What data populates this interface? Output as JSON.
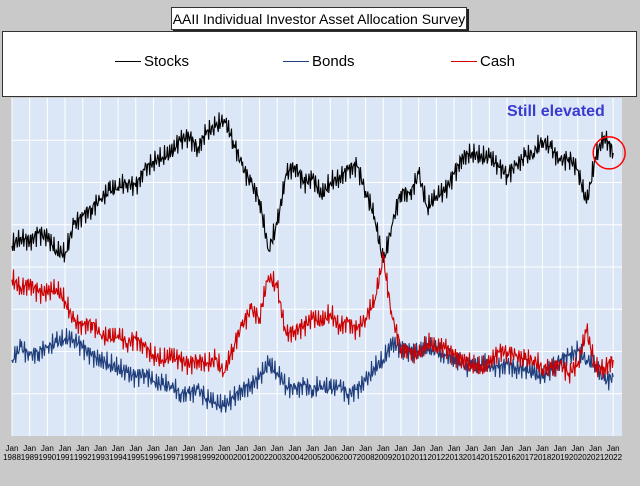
{
  "chart_data": {
    "type": "line",
    "title": "AAII Individual Investor Asset Allocation Survey",
    "x_labels": [
      {
        "top": "Jan",
        "bottom": "1988"
      },
      {
        "top": "Jan",
        "bottom": "1989"
      },
      {
        "top": "Jan",
        "bottom": "1990"
      },
      {
        "top": "Jan",
        "bottom": "1991"
      },
      {
        "top": "Jan",
        "bottom": "1992"
      },
      {
        "top": "Jan",
        "bottom": "1993"
      },
      {
        "top": "Jan",
        "bottom": "1994"
      },
      {
        "top": "Jan",
        "bottom": "1995"
      },
      {
        "top": "Jan",
        "bottom": "1996"
      },
      {
        "top": "Jan",
        "bottom": "1997"
      },
      {
        "top": "Jan",
        "bottom": "1998"
      },
      {
        "top": "Jan",
        "bottom": "1999"
      },
      {
        "top": "Jan",
        "bottom": "2000"
      },
      {
        "top": "Jan",
        "bottom": "2001"
      },
      {
        "top": "Jan",
        "bottom": "2002"
      },
      {
        "top": "Jan",
        "bottom": "2003"
      },
      {
        "top": "Jan",
        "bottom": "2004"
      },
      {
        "top": "Jan",
        "bottom": "2005"
      },
      {
        "top": "Jan",
        "bottom": "2006"
      },
      {
        "top": "Jan",
        "bottom": "2007"
      },
      {
        "top": "Jan",
        "bottom": "2008"
      },
      {
        "top": "Jan",
        "bottom": "2009"
      },
      {
        "top": "Jan",
        "bottom": "2010"
      },
      {
        "top": "Jan",
        "bottom": "2011"
      },
      {
        "top": "Jan",
        "bottom": "2012"
      },
      {
        "top": "Jan",
        "bottom": "2013"
      },
      {
        "top": "Jan",
        "bottom": "2014"
      },
      {
        "top": "Jan",
        "bottom": "2015"
      },
      {
        "top": "Jan",
        "bottom": "2016"
      },
      {
        "top": "Jan",
        "bottom": "2017"
      },
      {
        "top": "Jan",
        "bottom": "2018"
      },
      {
        "top": "Jan",
        "bottom": "2019"
      },
      {
        "top": "Jan",
        "bottom": "2020"
      },
      {
        "top": "Jan",
        "bottom": "2021"
      },
      {
        "top": "Jan",
        "bottom": "2022"
      }
    ],
    "xlim": [
      1988,
      2022.5
    ],
    "ylim": [
      0,
      80
    ],
    "yticks": [
      10,
      20,
      30,
      40,
      50,
      60,
      70
    ],
    "grid": true,
    "legend_position": "top",
    "annotation": "Still elevated",
    "series": [
      {
        "name": "Stocks",
        "color": "#000000",
        "values": [
          [
            1988,
            45
          ],
          [
            1988.5,
            47
          ],
          [
            1989,
            46
          ],
          [
            1989.5,
            48
          ],
          [
            1990,
            47
          ],
          [
            1990.5,
            44
          ],
          [
            1991,
            43
          ],
          [
            1991.5,
            50
          ],
          [
            1992,
            52
          ],
          [
            1992.5,
            54
          ],
          [
            1993,
            56
          ],
          [
            1993.5,
            58
          ],
          [
            1994,
            59
          ],
          [
            1994.5,
            60
          ],
          [
            1995,
            59
          ],
          [
            1995.5,
            63
          ],
          [
            1996,
            65
          ],
          [
            1996.5,
            66
          ],
          [
            1997,
            67
          ],
          [
            1997.5,
            70
          ],
          [
            1998,
            71
          ],
          [
            1998.5,
            68
          ],
          [
            1999,
            72
          ],
          [
            1999.5,
            73
          ],
          [
            2000,
            75
          ],
          [
            2000.5,
            70
          ],
          [
            2001,
            64
          ],
          [
            2001.5,
            60
          ],
          [
            2002,
            56
          ],
          [
            2002.5,
            44
          ],
          [
            2003,
            50
          ],
          [
            2003.5,
            62
          ],
          [
            2004,
            64
          ],
          [
            2004.5,
            60
          ],
          [
            2005,
            61
          ],
          [
            2005.5,
            57
          ],
          [
            2006,
            60
          ],
          [
            2006.5,
            61
          ],
          [
            2007,
            63
          ],
          [
            2007.5,
            64
          ],
          [
            2008,
            58
          ],
          [
            2008.5,
            52
          ],
          [
            2009,
            41
          ],
          [
            2009.5,
            50
          ],
          [
            2010,
            58
          ],
          [
            2010.5,
            57
          ],
          [
            2011,
            62
          ],
          [
            2011.5,
            54
          ],
          [
            2012,
            57
          ],
          [
            2012.5,
            58
          ],
          [
            2013,
            62
          ],
          [
            2013.5,
            66
          ],
          [
            2014,
            67
          ],
          [
            2014.5,
            66
          ],
          [
            2015,
            66
          ],
          [
            2015.5,
            64
          ],
          [
            2016,
            62
          ],
          [
            2016.5,
            64
          ],
          [
            2017,
            66
          ],
          [
            2017.5,
            67
          ],
          [
            2018,
            70
          ],
          [
            2018.5,
            68
          ],
          [
            2019,
            65
          ],
          [
            2019.5,
            66
          ],
          [
            2020,
            63
          ],
          [
            2020.5,
            55
          ],
          [
            2021,
            66
          ],
          [
            2021.5,
            71
          ],
          [
            2022,
            67
          ]
        ]
      },
      {
        "name": "Bonds",
        "color": "#1f3d7a",
        "values": [
          [
            1988,
            18
          ],
          [
            1988.5,
            21
          ],
          [
            1989,
            19
          ],
          [
            1989.5,
            20
          ],
          [
            1990,
            21
          ],
          [
            1990.5,
            22
          ],
          [
            1991,
            23
          ],
          [
            1991.5,
            23
          ],
          [
            1992,
            21
          ],
          [
            1992.5,
            19
          ],
          [
            1993,
            18
          ],
          [
            1993.5,
            17
          ],
          [
            1994,
            16
          ],
          [
            1994.5,
            15
          ],
          [
            1995,
            14
          ],
          [
            1995.5,
            15
          ],
          [
            1996,
            13
          ],
          [
            1996.5,
            12
          ],
          [
            1997,
            12
          ],
          [
            1997.5,
            10
          ],
          [
            1998,
            10
          ],
          [
            1998.5,
            11
          ],
          [
            1999,
            9
          ],
          [
            1999.5,
            8
          ],
          [
            2000,
            7
          ],
          [
            2000.5,
            9
          ],
          [
            2001,
            11
          ],
          [
            2001.5,
            12
          ],
          [
            2002,
            14
          ],
          [
            2002.5,
            17
          ],
          [
            2003,
            15
          ],
          [
            2003.5,
            12
          ],
          [
            2004,
            11
          ],
          [
            2004.5,
            12
          ],
          [
            2005,
            11
          ],
          [
            2005.5,
            12
          ],
          [
            2006,
            11
          ],
          [
            2006.5,
            12
          ],
          [
            2007,
            10
          ],
          [
            2007.5,
            11
          ],
          [
            2008,
            13
          ],
          [
            2008.5,
            16
          ],
          [
            2009,
            18
          ],
          [
            2009.5,
            22
          ],
          [
            2010,
            21
          ],
          [
            2010.5,
            20
          ],
          [
            2011,
            20
          ],
          [
            2011.5,
            21
          ],
          [
            2012,
            20
          ],
          [
            2012.5,
            19
          ],
          [
            2013,
            19
          ],
          [
            2013.5,
            17
          ],
          [
            2014,
            16
          ],
          [
            2014.5,
            17
          ],
          [
            2015,
            17
          ],
          [
            2015.5,
            16
          ],
          [
            2016,
            17
          ],
          [
            2016.5,
            16
          ],
          [
            2017,
            16
          ],
          [
            2017.5,
            15
          ],
          [
            2018,
            14
          ],
          [
            2018.5,
            16
          ],
          [
            2019,
            18
          ],
          [
            2019.5,
            19
          ],
          [
            2020,
            20
          ],
          [
            2020.5,
            18
          ],
          [
            2021,
            17
          ],
          [
            2021.5,
            13
          ],
          [
            2022,
            14
          ]
        ]
      },
      {
        "name": "Cash",
        "color": "#cc0000",
        "values": [
          [
            1988,
            37
          ],
          [
            1988.5,
            35
          ],
          [
            1989,
            36
          ],
          [
            1989.5,
            34
          ],
          [
            1990,
            34
          ],
          [
            1990.5,
            35
          ],
          [
            1991,
            32
          ],
          [
            1991.5,
            27
          ],
          [
            1992,
            26
          ],
          [
            1992.5,
            27
          ],
          [
            1993,
            24
          ],
          [
            1993.5,
            23
          ],
          [
            1994,
            24
          ],
          [
            1994.5,
            22
          ],
          [
            1995,
            23
          ],
          [
            1995.5,
            21
          ],
          [
            1996,
            19
          ],
          [
            1996.5,
            18
          ],
          [
            1997,
            19
          ],
          [
            1997.5,
            18
          ],
          [
            1998,
            17
          ],
          [
            1998.5,
            18
          ],
          [
            1999,
            17
          ],
          [
            1999.5,
            18
          ],
          [
            2000,
            15
          ],
          [
            2000.5,
            21
          ],
          [
            2001,
            26
          ],
          [
            2001.5,
            30
          ],
          [
            2002,
            28
          ],
          [
            2002.5,
            38
          ],
          [
            2003,
            35
          ],
          [
            2003.5,
            24
          ],
          [
            2004,
            25
          ],
          [
            2004.5,
            26
          ],
          [
            2005,
            28
          ],
          [
            2005.5,
            27
          ],
          [
            2006,
            29
          ],
          [
            2006.5,
            26
          ],
          [
            2007,
            27
          ],
          [
            2007.5,
            25
          ],
          [
            2008,
            28
          ],
          [
            2008.5,
            32
          ],
          [
            2009,
            42
          ],
          [
            2009.5,
            28
          ],
          [
            2010,
            21
          ],
          [
            2010.5,
            20
          ],
          [
            2011,
            19
          ],
          [
            2011.5,
            22
          ],
          [
            2012,
            21
          ],
          [
            2012.5,
            21
          ],
          [
            2013,
            19
          ],
          [
            2013.5,
            18
          ],
          [
            2014,
            17
          ],
          [
            2014.5,
            16
          ],
          [
            2015,
            17
          ],
          [
            2015.5,
            20
          ],
          [
            2016,
            20
          ],
          [
            2016.5,
            19
          ],
          [
            2017,
            18
          ],
          [
            2017.5,
            18
          ],
          [
            2018,
            16
          ],
          [
            2018.5,
            16
          ],
          [
            2019,
            17
          ],
          [
            2019.5,
            15
          ],
          [
            2020,
            17
          ],
          [
            2020.5,
            25
          ],
          [
            2021,
            16
          ],
          [
            2021.5,
            16
          ],
          [
            2022,
            18
          ]
        ]
      }
    ]
  }
}
